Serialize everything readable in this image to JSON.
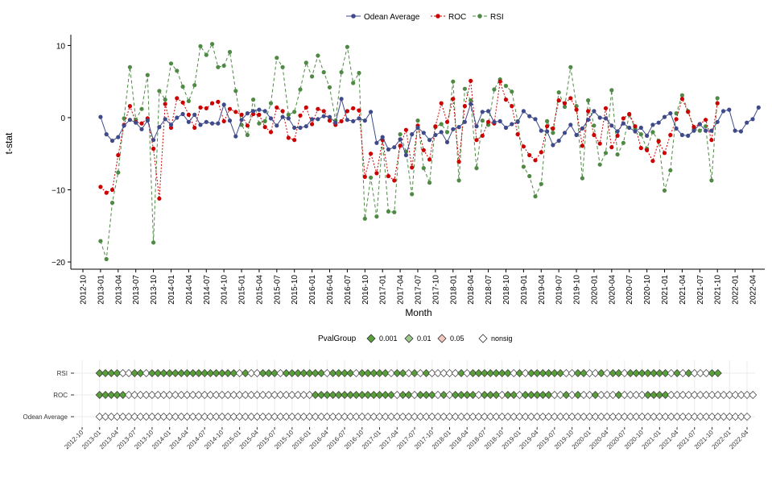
{
  "chart_data": [
    {
      "type": "line",
      "title": "",
      "xlabel": "Month",
      "ylabel": "t-stat",
      "ylim": [
        -21,
        11.5
      ],
      "yticks": [
        10,
        0,
        -10,
        -20
      ],
      "xtick_labels": [
        "2012-10",
        "2013-01",
        "2013-04",
        "2013-07",
        "2013-10",
        "2014-01",
        "2014-04",
        "2014-07",
        "2014-10",
        "2015-01",
        "2015-04",
        "2015-07",
        "2015-10",
        "2016-01",
        "2016-04",
        "2016-07",
        "2016-10",
        "2017-01",
        "2017-04",
        "2017-07",
        "2017-10",
        "2018-01",
        "2018-04",
        "2018-07",
        "2018-10",
        "2019-01",
        "2019-04",
        "2019-07",
        "2019-10",
        "2020-01",
        "2020-04",
        "2020-07",
        "2020-10",
        "2021-01",
        "2021-04",
        "2021-07",
        "2021-10",
        "2022-01",
        "2022-04"
      ],
      "x_start": "2013-01",
      "legend_position": "top",
      "grid": false,
      "series": [
        {
          "name": "Odean Average",
          "color": "#3f4a8a",
          "linestyle": "solid",
          "values": [
            0.1,
            -2.3,
            -3.2,
            -2.7,
            -1.1,
            -0.3,
            -0.7,
            -1.6,
            -0.4,
            -3.1,
            -1.3,
            -0.2,
            -1.0,
            0.0,
            0.5,
            -0.6,
            0.4,
            -1.0,
            -0.6,
            -0.8,
            -0.8,
            1.8,
            -0.4,
            -2.6,
            -0.3,
            0.6,
            0.9,
            1.1,
            0.9,
            -0.1,
            -1.1,
            0.1,
            -0.1,
            -1.4,
            -1.4,
            -1.2,
            -0.2,
            -0.2,
            0.2,
            0.1,
            -0.7,
            2.6,
            -0.3,
            -0.5,
            -0.1,
            -0.4,
            0.8,
            -3.5,
            -2.7,
            -4.4,
            -4.1,
            -3.0,
            -5.2,
            -2.3,
            -1.4,
            -2.1,
            -3.1,
            -2.4,
            -2.0,
            -3.4,
            -1.6,
            -1.3,
            -0.6,
            1.9,
            -1.2,
            0.8,
            0.9,
            -0.6,
            -0.5,
            -1.4,
            -0.9,
            -0.6,
            0.9,
            0.2,
            -0.2,
            -1.8,
            -1.9,
            -3.8,
            -3.2,
            -2.1,
            -1.0,
            -2.4,
            -1.5,
            -0.3,
            0.9,
            0.0,
            -0.1,
            -1.1,
            -1.9,
            -0.8,
            -1.4,
            -1.9,
            -1.4,
            -2.5,
            -1.0,
            -0.7,
            0.1,
            0.6,
            -1.5,
            -2.4,
            -2.5,
            -1.8,
            -0.9,
            -1.8,
            -1.8,
            -0.6,
            0.9,
            1.1,
            -1.8,
            -1.9,
            -0.7,
            -0.2,
            1.4
          ]
        },
        {
          "name": "ROC",
          "color": "#cc0000",
          "linestyle": "dotted",
          "values": [
            -9.6,
            -10.4,
            -10.0,
            -5.2,
            -1.0,
            1.6,
            -0.6,
            -0.8,
            -0.1,
            -4.3,
            -11.2,
            1.9,
            -1.4,
            2.7,
            2.1,
            0.4,
            -1.4,
            1.4,
            1.3,
            2.0,
            2.2,
            -0.5,
            1.2,
            0.8,
            0.4,
            -1.1,
            0.5,
            0.4,
            -1.3,
            -2.0,
            1.4,
            0.9,
            -2.8,
            -3.1,
            0.3,
            1.4,
            -0.9,
            1.2,
            0.9,
            -0.4,
            -1.0,
            -0.5,
            0.9,
            1.3,
            1.0,
            -8.2,
            -5.0,
            -7.7,
            -3.1,
            -8.1,
            -8.7,
            -3.9,
            -1.7,
            -6.9,
            -1.1,
            -4.5,
            -5.8,
            -1.2,
            2.0,
            -0.6,
            2.6,
            -6.1,
            1.6,
            5.1,
            -3.1,
            -2.5,
            -0.6,
            -0.8,
            5.0,
            2.5,
            1.6,
            -2.3,
            -4.0,
            -5.2,
            -5.9,
            -4.8,
            -1.2,
            -1.5,
            2.4,
            2.0,
            2.7,
            1.1,
            -3.9,
            0.9,
            -2.4,
            -3.6,
            1.3,
            -4.1,
            -2.5,
            -0.1,
            0.5,
            -1.2,
            -4.2,
            -4.5,
            -6.0,
            -3.3,
            -4.9,
            -2.4,
            -0.2,
            2.6,
            0.8,
            -1.3,
            -0.9,
            -0.3,
            -3.1,
            2.0
          ]
        },
        {
          "name": "RSI",
          "color": "#4f8a45",
          "linestyle": "dashed",
          "values": [
            -17.1,
            -19.6,
            -11.8,
            -7.6,
            -0.1,
            7.0,
            -0.3,
            1.2,
            5.9,
            -17.3,
            3.7,
            2.5,
            7.5,
            6.5,
            4.3,
            2.3,
            4.5,
            9.9,
            8.7,
            10.2,
            7.0,
            7.2,
            9.1,
            3.7,
            -1.0,
            -2.4,
            2.5,
            -0.8,
            -0.5,
            2.0,
            8.3,
            7.0,
            0.4,
            0.8,
            3.9,
            7.6,
            5.7,
            8.6,
            6.3,
            4.2,
            -0.4,
            6.3,
            9.8,
            4.8,
            6.2,
            -14.0,
            -8.3,
            -13.7,
            -3.1,
            -13.0,
            -13.1,
            -2.3,
            -4.7,
            -10.6,
            -0.4,
            -7.0,
            -9.0,
            -1.3,
            -0.9,
            -2.0,
            5.0,
            -8.7,
            4.0,
            2.4,
            -7.0,
            -0.4,
            -1.0,
            3.9,
            5.3,
            4.4,
            3.6,
            -0.5,
            -6.8,
            -8.1,
            -10.9,
            -9.2,
            -0.5,
            -2.1,
            3.5,
            1.5,
            7.0,
            1.6,
            -8.4,
            2.4,
            -1.1,
            -6.5,
            -4.9,
            3.8,
            -5.1,
            -3.5,
            0.4,
            -1.5,
            -2.3,
            -4.3,
            -2.0,
            -3.2,
            -10.1,
            -7.3,
            0.6,
            3.1,
            0.9,
            -1.6,
            -1.8,
            -1.2,
            -8.7,
            2.7
          ]
        }
      ]
    },
    {
      "type": "heatmap",
      "title": "",
      "xlabel": "",
      "ylabel": "",
      "legend_title": "PvalGroup",
      "legend_position": "top",
      "grid": true,
      "categories": [
        "RSI",
        "ROC",
        "Odean Average"
      ],
      "xtick_labels": [
        "2012-10",
        "2013-01",
        "2013-04",
        "2013-07",
        "2013-10",
        "2014-01",
        "2014-04",
        "2014-07",
        "2014-10",
        "2015-01",
        "2015-04",
        "2015-07",
        "2015-10",
        "2016-01",
        "2016-04",
        "2016-07",
        "2016-10",
        "2017-01",
        "2017-04",
        "2017-07",
        "2017-10",
        "2018-01",
        "2018-04",
        "2018-07",
        "2018-10",
        "2019-01",
        "2019-04",
        "2019-07",
        "2019-10",
        "2020-01",
        "2020-04",
        "2020-07",
        "2020-10",
        "2021-01",
        "2021-04",
        "2021-07",
        "2021-10",
        "2022-01",
        "2022-04"
      ],
      "x_start": "2013-01",
      "groups": [
        {
          "label": "0.001",
          "color": "#5aa03a"
        },
        {
          "label": "0.01",
          "color": "#9bc98a"
        },
        {
          "label": "0.05",
          "color": "#f2c8c0"
        },
        {
          "label": "nonsig",
          "color": "#ffffff"
        }
      ],
      "rows": {
        "RSI": "0000nn00n000000000000000n0nn000n0000000n0000n00000n00n0n0nnnnn0n0000000n0n000000nn00nn0n00n0000000n0n0nnn00",
        "ROC": "00000nnnnnnnnnnnnnnnnnnnnnnnnnnnnnnnn00000000000000n00n000n0n0000n000n00n00000nn0n0nn0nnn0nnnn0000nnnnnnnnnnnnnnn",
        "Odean Average": "nnnnnnnnnnnnnnnnnnnnnnnnnnnnnnnnnnnnnnnnnnnnnnnnnnnnnnnnnnnnnnnnnnnnnnnnnnnnnnnnnnnnnnnnnnnnnnnnnnnnnnnnnnnnnnnn"
      }
    }
  ]
}
